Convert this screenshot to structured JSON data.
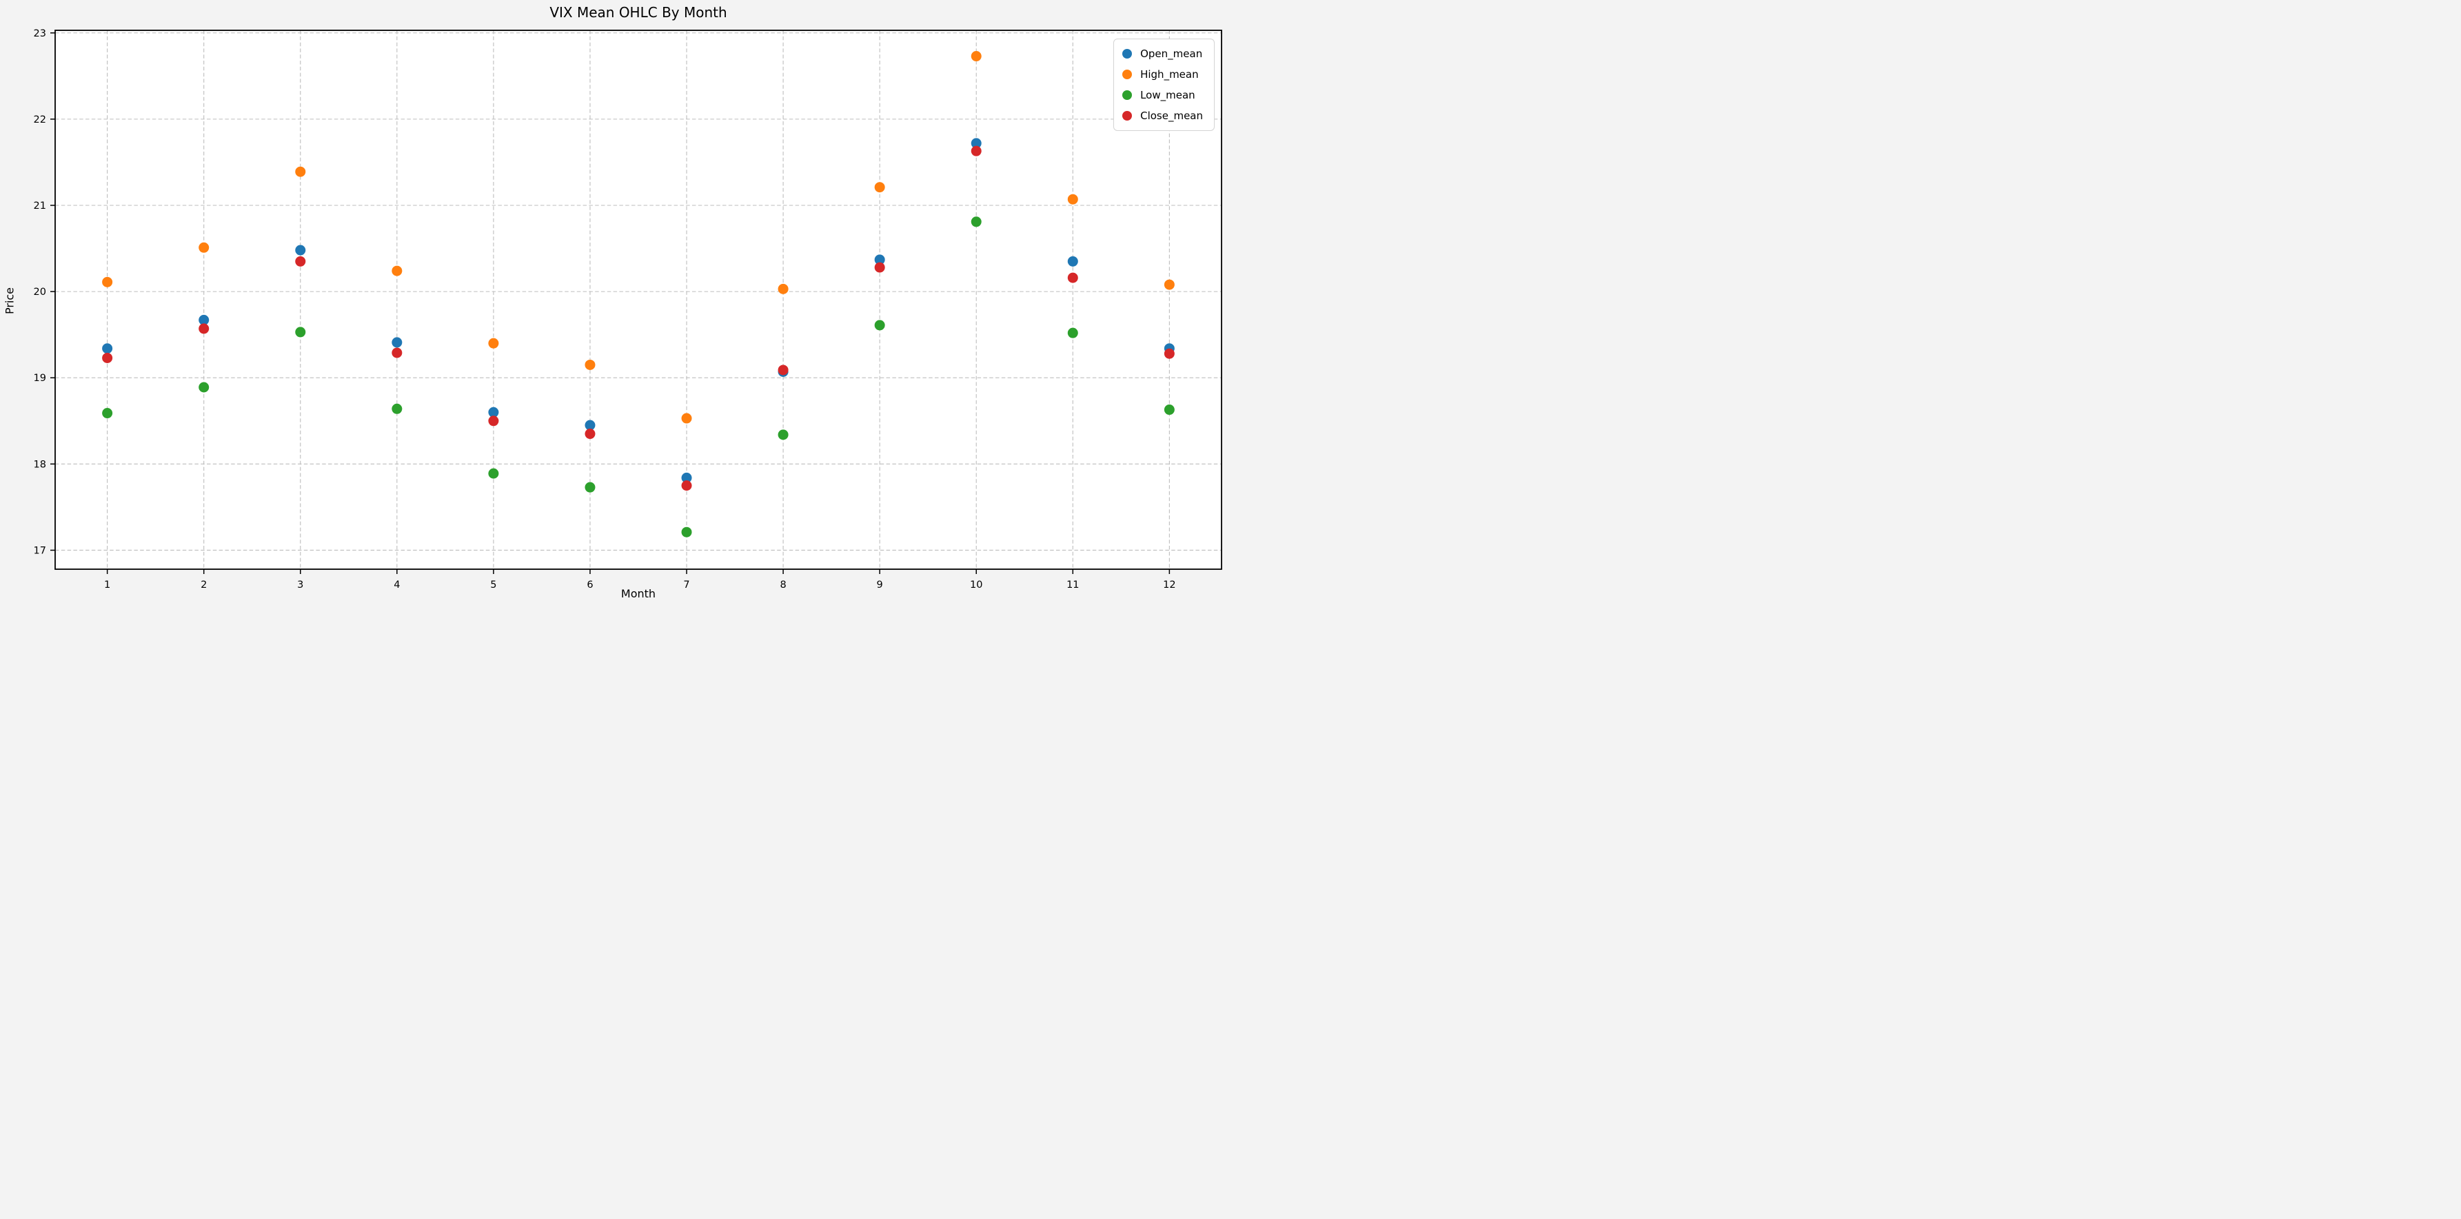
{
  "style": {
    "figure_bg": "#f3f3f3",
    "plot_bg": "#ffffff",
    "grid_color": "#bdbdbd",
    "spine_color": "#000000",
    "tick_color": "#000000"
  },
  "chart_data": {
    "type": "scatter",
    "title": "VIX Mean OHLC By Month",
    "xlabel": "Month",
    "ylabel": "Price",
    "x": [
      1,
      2,
      3,
      4,
      5,
      6,
      7,
      8,
      9,
      10,
      11,
      12
    ],
    "series": [
      {
        "name": "Open_mean",
        "color": "#1f77b4",
        "values": [
          19.34,
          19.67,
          20.48,
          19.41,
          18.6,
          18.45,
          17.84,
          19.07,
          20.37,
          21.72,
          20.35,
          19.34
        ]
      },
      {
        "name": "High_mean",
        "color": "#ff7f0e",
        "values": [
          20.11,
          20.51,
          21.39,
          20.24,
          19.4,
          19.15,
          18.53,
          20.03,
          21.21,
          22.73,
          21.07,
          20.08
        ]
      },
      {
        "name": "Low_mean",
        "color": "#2ca02c",
        "values": [
          18.59,
          18.89,
          19.53,
          18.64,
          17.89,
          17.73,
          17.21,
          18.34,
          19.61,
          20.81,
          19.52,
          18.63
        ]
      },
      {
        "name": "Close_mean",
        "color": "#d62728",
        "values": [
          19.23,
          19.57,
          20.35,
          19.29,
          18.5,
          18.35,
          17.75,
          19.09,
          20.28,
          21.63,
          20.16,
          19.28
        ]
      }
    ],
    "xticks": [
      "1",
      "2",
      "3",
      "4",
      "5",
      "6",
      "7",
      "8",
      "9",
      "10",
      "11",
      "12"
    ],
    "yticks": [
      "17",
      "18",
      "19",
      "20",
      "21",
      "22",
      "23"
    ],
    "xlim": [
      0.46,
      12.54
    ],
    "ylim": [
      16.78,
      23.03
    ],
    "grid": true,
    "grid_style": "dashed",
    "legend_position": "upper right",
    "marker": "circle",
    "marker_radius": 7.5
  }
}
